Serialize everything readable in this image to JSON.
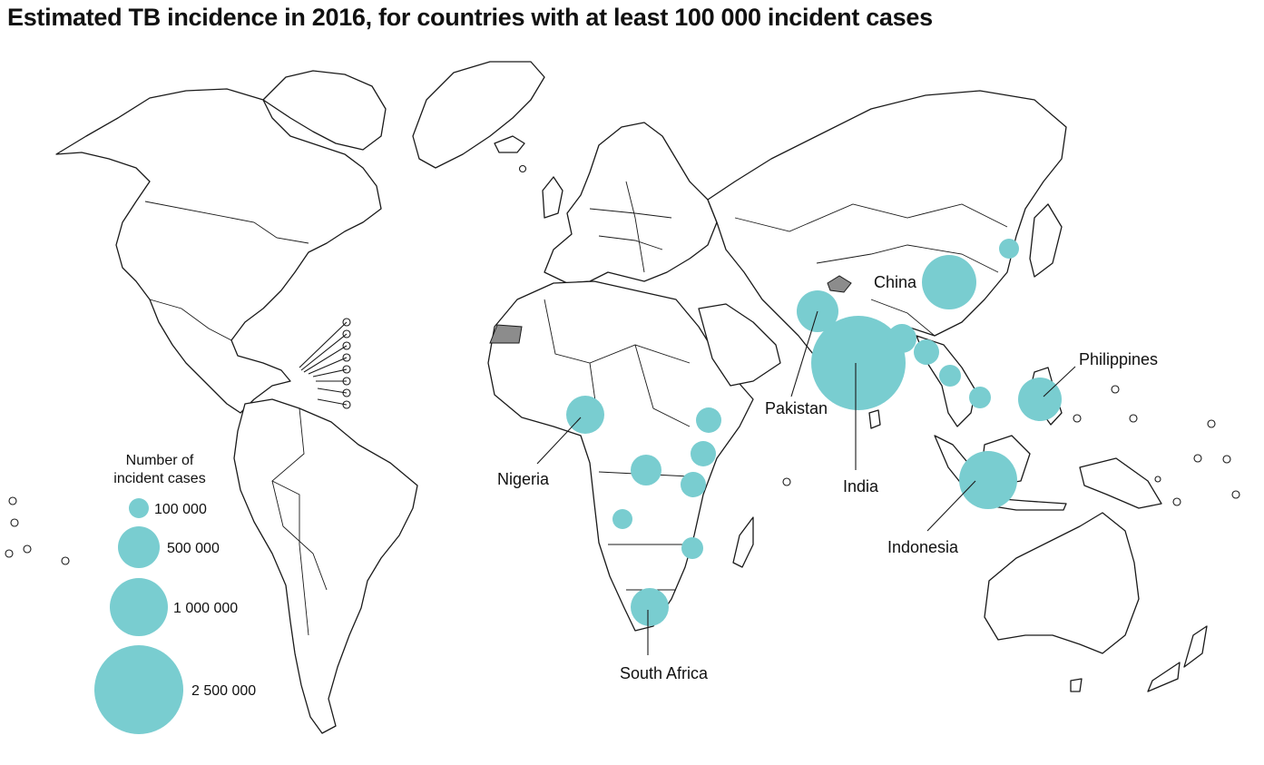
{
  "title": "Estimated TB incidence in 2016, for countries with at least 100 000 incident cases",
  "colors": {
    "bubble": "#79cdd0",
    "land": "#ffffff",
    "outline": "#1a1a1a",
    "no_data": "#8c8c8c"
  },
  "legend": {
    "title_line1": "Number of",
    "title_line2": "incident cases",
    "items": [
      {
        "label": "100 000",
        "value": 100000
      },
      {
        "label": "500 000",
        "value": 500000
      },
      {
        "label": "1 000 000",
        "value": 1000000
      },
      {
        "label": "2 500 000",
        "value": 2500000
      }
    ]
  },
  "country_labels": {
    "china": "China",
    "philippines": "Philippines",
    "pakistan": "Pakistan",
    "india": "India",
    "nigeria": "Nigeria",
    "indonesia": "Indonesia",
    "south_africa": "South Africa"
  }
}
